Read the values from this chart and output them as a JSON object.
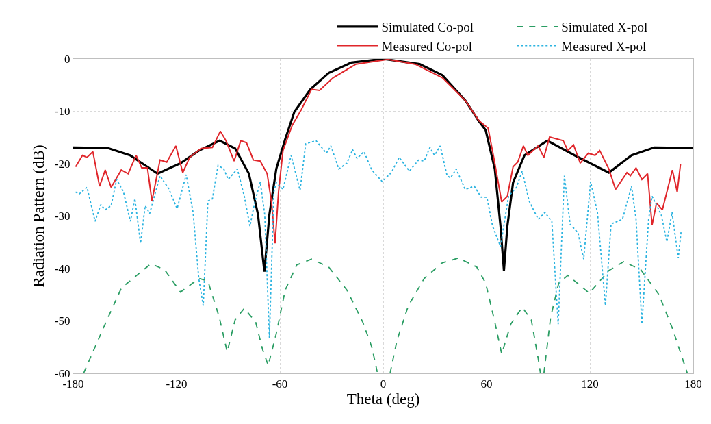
{
  "chart_data": {
    "type": "line",
    "xlabel": "Theta (deg)",
    "ylabel": "Radiation Pattern (dB)",
    "xlim": [
      -180,
      180
    ],
    "xticks": [
      -180,
      -120,
      -60,
      0,
      60,
      120,
      180
    ],
    "ylim": [
      -60,
      0
    ],
    "yticks": [
      -60,
      -50,
      -40,
      -30,
      -20,
      -10,
      0
    ],
    "grid": true,
    "legend": "top",
    "marker": "none",
    "series": [
      {
        "name": "Simulated Co-pol",
        "color": "#000000",
        "line_style": "solid",
        "x": [
          -180,
          -160,
          -147,
          -131,
          -117.7,
          -107,
          -95,
          -86,
          -78,
          -72.7,
          -69,
          -66.1,
          -62.1,
          -56.9,
          -51.6,
          -42.3,
          -31.7,
          -18.5,
          0,
          21.2,
          34.4,
          47.6,
          55.6,
          59.5,
          64.8,
          68.1,
          70.1,
          72.1,
          75.4,
          82,
          95.3,
          111.1,
          131,
          144.2,
          157.4,
          180
        ],
        "values": [
          -16.9,
          -17,
          -18.4,
          -21.9,
          -19.9,
          -17.5,
          -15.6,
          -17.1,
          -21.9,
          -29.7,
          -40.6,
          -29.7,
          -21,
          -15.3,
          -10.1,
          -5.8,
          -2.7,
          -0.7,
          0,
          -1,
          -3.1,
          -7.9,
          -11.9,
          -13.6,
          -21,
          -31.9,
          -40.4,
          -31.9,
          -23.6,
          -18.4,
          -15.6,
          -18.4,
          -21.7,
          -18.4,
          -16.9,
          -17
        ]
      },
      {
        "name": "Simulated X-pol",
        "color": "#2a9d63",
        "line_style": "dashed",
        "x": [
          -174,
          -162.7,
          -152,
          -134.9,
          -127,
          -117.7,
          -107,
          -101.8,
          -95.2,
          -90.6,
          -86,
          -80.7,
          -74.1,
          -70.1,
          -66.8,
          -62.1,
          -56.9,
          -50.2,
          -41.6,
          -31.7,
          -21.1,
          -11.9,
          -6.6,
          -3.3,
          0,
          4,
          8,
          14.6,
          23.8,
          34.4,
          43.7,
          54.3,
          59.5,
          64.8,
          68.8,
          74.1,
          80.7,
          86,
          90,
          91.3,
          92.3,
          93.3,
          97.2,
          101.9,
          107.2,
          119.7,
          131,
          139.6,
          149.5,
          160.1,
          168,
          176.6
        ],
        "values": [
          -60,
          -51.5,
          -43.7,
          -39.1,
          -40.2,
          -44.5,
          -41.9,
          -42.4,
          -49.3,
          -55.9,
          -49.8,
          -47.6,
          -50.2,
          -55.4,
          -58.5,
          -52.4,
          -44.1,
          -39.3,
          -38.2,
          -39.7,
          -44.1,
          -50.2,
          -55,
          -60,
          null,
          -60,
          -53.7,
          -47.1,
          -41.9,
          -38.9,
          -38,
          -39.7,
          -42.8,
          -50.2,
          -56.3,
          -50.6,
          -47.4,
          -49.8,
          -57.2,
          -60,
          null,
          -60,
          -49.3,
          -42.8,
          -41.3,
          -44.7,
          -40.4,
          -38.7,
          -40.2,
          -45,
          -51.5,
          -60
        ]
      },
      {
        "name": "Measured Co-pol",
        "color": "#e0262b",
        "line_style": "solid",
        "x": [
          -178.6,
          -174.6,
          -172,
          -168.6,
          -164.7,
          -161.4,
          -158,
          -152.1,
          -148.1,
          -143.5,
          -140.2,
          -136.9,
          -134.3,
          -129.6,
          -125.7,
          -120.4,
          -116.4,
          -112.4,
          -105.8,
          -99.2,
          -94.6,
          -91.3,
          -86.6,
          -82.7,
          -79.4,
          -75.4,
          -71.4,
          -67.4,
          -64.8,
          -62.8,
          -60.8,
          -58.2,
          -52.9,
          -47.6,
          -41.6,
          -37,
          -29.1,
          -15.8,
          2.7,
          18.5,
          34.4,
          47.6,
          55.6,
          60.9,
          64.2,
          68.8,
          72.1,
          75.4,
          78.1,
          81.4,
          84,
          90,
          93.3,
          96.6,
          104.5,
          107.2,
          110.5,
          114.4,
          119.1,
          123,
          125.7,
          131,
          134.9,
          141.5,
          143.5,
          146.8,
          150.2,
          153.5,
          156.1,
          158.7,
          162.1,
          167.9,
          170.7,
          172.6
        ],
        "values": [
          -20.6,
          -18.4,
          -18.8,
          -17.7,
          -24.3,
          -21.2,
          -24.5,
          -21.2,
          -21.9,
          -18.4,
          -20.8,
          -20.8,
          -27.1,
          -19.3,
          -19.7,
          -16.6,
          -21.7,
          -18.8,
          -17.1,
          -16.9,
          -13.8,
          -15.6,
          -19.5,
          -15.6,
          -16,
          -19.3,
          -19.5,
          -21.9,
          -27.5,
          -35.2,
          -25.4,
          -17.5,
          -12.7,
          -9.7,
          -5.8,
          -6,
          -3.6,
          -1,
          -0.1,
          -1,
          -3.6,
          -7.9,
          -11.8,
          -13.2,
          -18.8,
          -27.3,
          -26.2,
          -20.6,
          -19.7,
          -16.6,
          -18.4,
          -16.6,
          -18.8,
          -14.9,
          -15.6,
          -17.5,
          -16.4,
          -19.9,
          -18,
          -18.4,
          -17.5,
          -21,
          -24.9,
          -21.7,
          -22.3,
          -20.8,
          -23,
          -21.9,
          -31.7,
          -27.5,
          -28.8,
          -21.2,
          -25.4,
          -20.1
        ]
      },
      {
        "name": "Measured X-pol",
        "color": "#2bb3e0",
        "line_style": "dotted",
        "x": [
          -178.6,
          -176.6,
          -172,
          -167.3,
          -164,
          -161.4,
          -158,
          -154.8,
          -150.8,
          -146.8,
          -144.2,
          -140.9,
          -138.2,
          -135.6,
          -129.6,
          -124.3,
          -119.7,
          -114.4,
          -110.4,
          -107.1,
          -104.5,
          -101.8,
          -99.2,
          -95.9,
          -92.6,
          -90,
          -84.7,
          -80.7,
          -77.4,
          -74.7,
          -71.4,
          -68.8,
          -66.1,
          -63.5,
          -62.1,
          -58.2,
          -53.5,
          -48.3,
          -45,
          -39,
          -33,
          -30.4,
          -25.8,
          -21.1,
          -17.8,
          -15.2,
          -11.2,
          -6.6,
          -0.6,
          4.7,
          9.3,
          15.2,
          20.5,
          23.8,
          27.1,
          29.8,
          33.1,
          37.1,
          39.1,
          42.4,
          47.6,
          52.9,
          56.9,
          60.2,
          63.5,
          68.1,
          72.8,
          77.4,
          80.7,
          84.7,
          90,
          93.9,
          97.9,
          101.6,
          105.2,
          108.5,
          113.1,
          116.4,
          120.4,
          124.4,
          129,
          132.3,
          138.9,
          144.2,
          146.8,
          150.2,
          154.1,
          156.1,
          161.4,
          164.7,
          167.7,
          171.3,
          173
        ],
        "values": [
          -25.4,
          -25.8,
          -24.5,
          -31,
          -27.8,
          -28.8,
          -28,
          -23,
          -25.4,
          -31,
          -26.7,
          -35.2,
          -28,
          -29.5,
          -22.3,
          -24.9,
          -28.6,
          -22.1,
          -29.3,
          -41.9,
          -47.1,
          -27.1,
          -26.7,
          -20.3,
          -21,
          -23,
          -21,
          -26.2,
          -31.9,
          -27.5,
          -23.5,
          -29.7,
          -53.2,
          -25.4,
          -23.6,
          -24.9,
          -18.4,
          -25.1,
          -16.2,
          -15.6,
          -18,
          -16.6,
          -21,
          -19.9,
          -17.3,
          -19,
          -17.7,
          -21.2,
          -23.4,
          -21.7,
          -18.8,
          -21.4,
          -19.3,
          -19.5,
          -16.9,
          -18.4,
          -16.6,
          -22.3,
          -22.7,
          -21,
          -24.9,
          -24.3,
          -26.4,
          -26.4,
          -31.9,
          -35.8,
          -26.2,
          -24.5,
          -21.4,
          -27.1,
          -30.6,
          -29.3,
          -31,
          -50.6,
          -22.3,
          -31.5,
          -33.2,
          -38.2,
          -23.4,
          -29.3,
          -47.1,
          -31.5,
          -30.6,
          -24.3,
          -30.6,
          -50.6,
          -30.6,
          -26.2,
          -29.7,
          -34.9,
          -29.3,
          -38,
          -32.8
        ]
      }
    ]
  }
}
